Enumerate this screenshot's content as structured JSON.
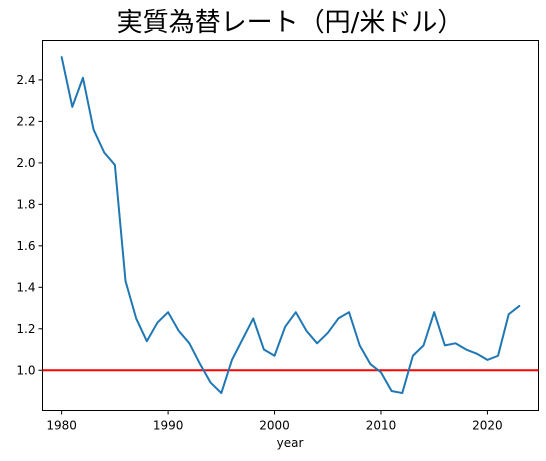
{
  "chart_data": {
    "type": "line",
    "title": "実質為替レート（円/米ドル）",
    "xlabel": "year",
    "ylabel": "",
    "xlim": [
      1978.2,
      2024.8
    ],
    "ylim": [
      0.806,
      2.59
    ],
    "xticks": [
      1980,
      1990,
      2000,
      2010,
      2020
    ],
    "yticks": [
      1.0,
      1.2,
      1.4,
      1.6,
      1.8,
      2.0,
      2.2,
      2.4
    ],
    "grid": false,
    "line_color": "#1f77b4",
    "reference_line": {
      "y": 1.0,
      "color": "#ff0000"
    },
    "series": [
      {
        "x": [
          1980,
          1981,
          1982,
          1983,
          1984,
          1985,
          1986,
          1987,
          1988,
          1989,
          1990,
          1991,
          1992,
          1993,
          1994,
          1995,
          1996,
          1997,
          1998,
          1999,
          2000,
          2001,
          2002,
          2003,
          2004,
          2005,
          2006,
          2007,
          2008,
          2009,
          2010,
          2011,
          2012,
          2013,
          2014,
          2015,
          2016,
          2017,
          2018,
          2019,
          2020,
          2021,
          2022,
          2023
        ],
        "values": [
          2.51,
          2.27,
          2.41,
          2.16,
          2.05,
          1.99,
          1.43,
          1.25,
          1.14,
          1.23,
          1.28,
          1.19,
          1.13,
          1.03,
          0.94,
          0.89,
          1.05,
          1.15,
          1.25,
          1.1,
          1.07,
          1.21,
          1.28,
          1.19,
          1.13,
          1.18,
          1.25,
          1.28,
          1.12,
          1.03,
          0.99,
          0.9,
          0.89,
          1.07,
          1.12,
          1.28,
          1.12,
          1.13,
          1.1,
          1.08,
          1.05,
          1.07,
          1.27,
          1.31
        ]
      }
    ]
  }
}
